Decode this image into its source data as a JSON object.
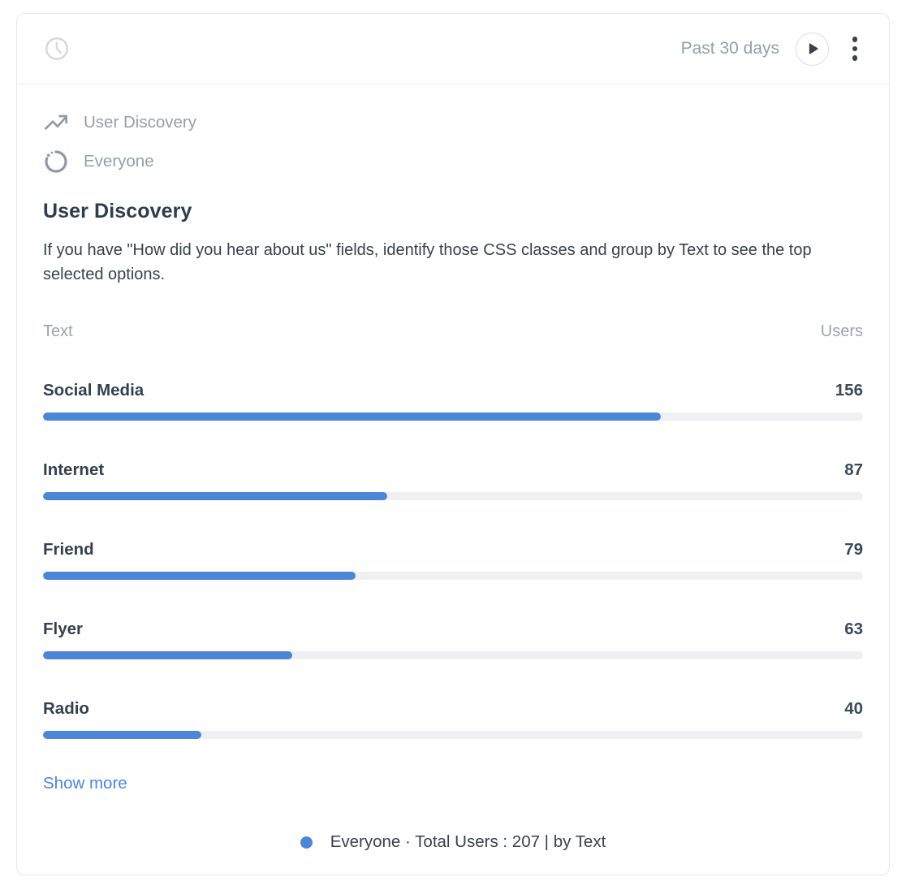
{
  "colors": {
    "bar_fill": "#4c86d9",
    "bar_track": "#eef0f2",
    "muted_text": "#94a0ab",
    "dark_text": "#33414e",
    "link_blue": "#4a86dd",
    "legend_dot": "#4c86d9",
    "icon_gray": "#8f9aa6",
    "clock_gray": "#d9d9d9"
  },
  "header": {
    "date_range": "Past 30 days",
    "icons": {
      "left": "clock-icon",
      "play": "play-icon",
      "menu": "kebab-menu-icon"
    }
  },
  "meta": {
    "report": {
      "icon": "trending-up-icon",
      "label": "User Discovery"
    },
    "segment": {
      "icon": "spinner-icon",
      "label": "Everyone"
    }
  },
  "title": "User Discovery",
  "description": "If you have \"How did you hear about us\" fields, identify those CSS classes and group by Text to see the top selected options.",
  "table": {
    "columns": [
      "Text",
      "Users"
    ],
    "total": 207,
    "rows": [
      {
        "label": "Social Media",
        "value": 156
      },
      {
        "label": "Internet",
        "value": 87
      },
      {
        "label": "Friend",
        "value": 79
      },
      {
        "label": "Flyer",
        "value": 63
      },
      {
        "label": "Radio",
        "value": 40
      }
    ]
  },
  "show_more": "Show more",
  "legend": {
    "dot": "legend-dot",
    "text": "Everyone · Total Users : 207 | by Text"
  },
  "chart_data": {
    "type": "bar",
    "orientation": "horizontal",
    "title": "User Discovery",
    "categories": [
      "Social Media",
      "Internet",
      "Friend",
      "Flyer",
      "Radio"
    ],
    "values": [
      156,
      87,
      79,
      63,
      40
    ],
    "xlabel": "Users",
    "ylabel": "Text",
    "xlim": [
      0,
      207
    ],
    "segment": "Everyone",
    "total_users": 207,
    "date_range": "Past 30 days",
    "grid": false,
    "legend_position": "bottom-center"
  }
}
